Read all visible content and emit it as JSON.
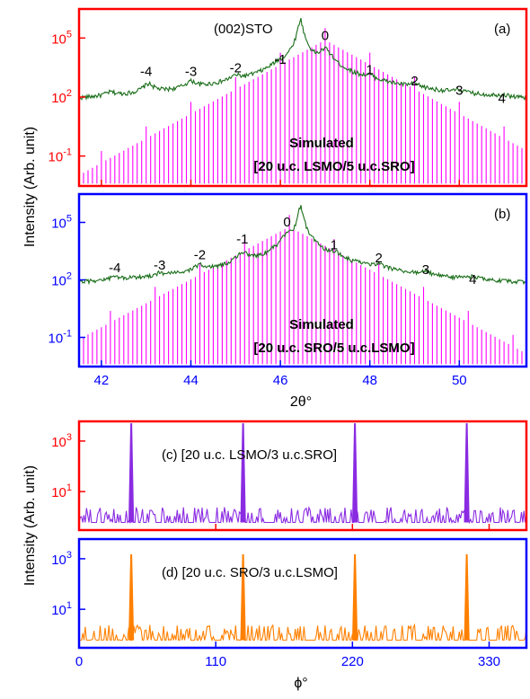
{
  "colors": {
    "top_axes_frame": "#ff0000",
    "bottom_axes_frame": "#0000ff",
    "measured_xrd": "#1a6e1a",
    "simulated_xrd": "#ff00ff",
    "phi_c": "#8a2be2",
    "phi_d": "#ff8000",
    "xaxis_ticks_top": "#0000ff",
    "xaxis_ticks_bottom": "#0000ff"
  },
  "figure": {
    "ylabel_top": "Intensity (Arb. unit)",
    "ylabel_bottom": "Intensity (Arb. unit)",
    "xlabel_top": "2θ°",
    "xlabel_bottom": "ϕ°"
  },
  "chart_data": [
    {
      "panel": "a",
      "type": "line",
      "tag": "(a)",
      "substrate_label": "(002)STO",
      "simulated_label_line1": "Simulated",
      "simulated_label_line2": "[20 u.c. LSMO/5 u.c.SRO]",
      "ylog": true,
      "ylim": [
        0.003,
        3000000
      ],
      "yticks": [
        {
          "exp": "5",
          "value": 100000
        },
        {
          "exp": "2",
          "value": 100
        },
        {
          "exp": "-1",
          "value": 0.1
        }
      ],
      "xlim": [
        41.5,
        51.5
      ],
      "peak_labels": [
        {
          "text": "-4",
          "x": 43.0,
          "y": 1200
        },
        {
          "text": "-3",
          "x": 44.0,
          "y": 1200
        },
        {
          "text": "-2",
          "x": 45.0,
          "y": 1800
        },
        {
          "text": "-1",
          "x": 46.0,
          "y": 5000
        },
        {
          "text": "0",
          "x": 47.0,
          "y": 80000
        },
        {
          "text": "1",
          "x": 48.0,
          "y": 1500
        },
        {
          "text": "2",
          "x": 49.0,
          "y": 400
        },
        {
          "text": "3",
          "x": 50.0,
          "y": 130
        },
        {
          "text": "4",
          "x": 50.95,
          "y": 50
        }
      ],
      "measured_peaks": [
        {
          "x": 42.2,
          "y": 60
        },
        {
          "x": 43.05,
          "y": 300
        },
        {
          "x": 44.0,
          "y": 350
        },
        {
          "x": 45.0,
          "y": 500
        },
        {
          "x": 45.95,
          "y": 1800
        },
        {
          "x": 46.45,
          "y": 900000
        },
        {
          "x": 47.0,
          "y": 25000
        },
        {
          "x": 48.0,
          "y": 400
        },
        {
          "x": 49.0,
          "y": 150
        },
        {
          "x": 50.0,
          "y": 60
        },
        {
          "x": 50.95,
          "y": 25
        }
      ],
      "measured_baseline": 18,
      "simulated_center": 47.0,
      "simulated_peak": 80000,
      "simulated_floor": 0.004,
      "simulated_spacing": 0.1
    },
    {
      "panel": "b",
      "type": "line",
      "tag": "(b)",
      "simulated_label_line1": "Simulated",
      "simulated_label_line2": "[20 u.c. SRO/5 u.c.LSMO]",
      "ylog": true,
      "ylim": [
        0.003,
        3000000
      ],
      "yticks": [
        {
          "exp": "5",
          "value": 100000
        },
        {
          "exp": "2",
          "value": 100
        },
        {
          "exp": "-1",
          "value": 0.1
        }
      ],
      "xlim": [
        41.5,
        51.5
      ],
      "xticks": [
        42,
        44,
        46,
        48,
        50
      ],
      "peak_labels": [
        {
          "text": "-4",
          "x": 42.3,
          "y": 250
        },
        {
          "text": "-3",
          "x": 43.3,
          "y": 350
        },
        {
          "text": "-2",
          "x": 44.2,
          "y": 1200
        },
        {
          "text": "-1",
          "x": 45.15,
          "y": 8000
        },
        {
          "text": "0",
          "x": 46.15,
          "y": 60000
        },
        {
          "text": "1",
          "x": 47.2,
          "y": 4000
        },
        {
          "text": "2",
          "x": 48.2,
          "y": 800
        },
        {
          "text": "3",
          "x": 49.25,
          "y": 200
        },
        {
          "text": "4",
          "x": 50.3,
          "y": 60
        }
      ],
      "measured_peaks": [
        {
          "x": 42.3,
          "y": 40
        },
        {
          "x": 43.3,
          "y": 60
        },
        {
          "x": 44.2,
          "y": 300
        },
        {
          "x": 45.15,
          "y": 2000
        },
        {
          "x": 46.15,
          "y": 15000
        },
        {
          "x": 46.45,
          "y": 700000
        },
        {
          "x": 47.2,
          "y": 1200
        },
        {
          "x": 48.2,
          "y": 250
        },
        {
          "x": 49.25,
          "y": 80
        },
        {
          "x": 50.3,
          "y": 40
        }
      ],
      "measured_baseline": 22,
      "simulated_center": 46.2,
      "simulated_peak": 60000,
      "simulated_floor": 0.004,
      "simulated_spacing": 0.1
    },
    {
      "panel": "c",
      "type": "line",
      "label": "(c) [20 u.c. LSMO/3 u.c.SRO]",
      "ylog": true,
      "ylim": [
        0.3,
        6000
      ],
      "yticks": [
        {
          "exp": "3",
          "value": 1000
        },
        {
          "exp": "1",
          "value": 10
        }
      ],
      "xlim": [
        0,
        360
      ],
      "peaks": [
        42,
        132,
        222,
        312
      ],
      "peak_height": 5000,
      "noise_floor": 0.6
    },
    {
      "panel": "d",
      "type": "line",
      "label": "(d) [20 u.c. SRO/3 u.c.LSMO]",
      "ylog": true,
      "ylim": [
        0.3,
        6000
      ],
      "yticks": [
        {
          "exp": "3",
          "value": 1000
        },
        {
          "exp": "1",
          "value": 10
        }
      ],
      "xlim": [
        0,
        360
      ],
      "xticks": [
        0,
        110,
        220,
        330
      ],
      "peaks": [
        42,
        132,
        222,
        312
      ],
      "peak_height": 1500,
      "noise_floor": 0.6
    }
  ]
}
